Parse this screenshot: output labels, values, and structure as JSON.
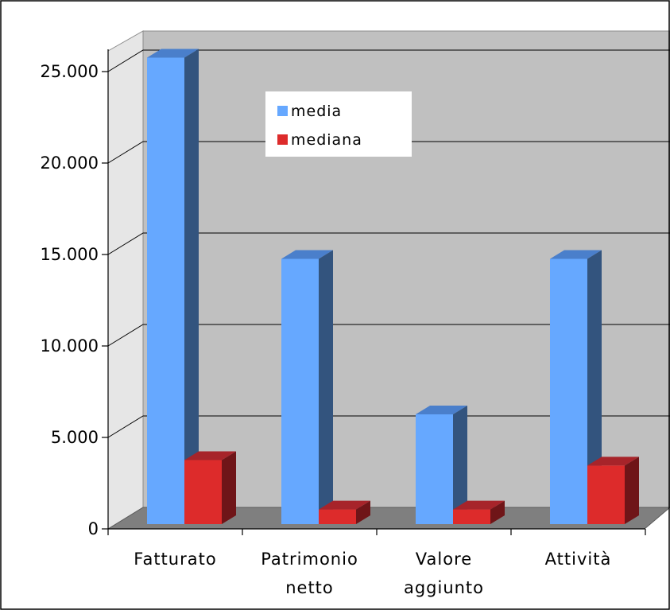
{
  "chart_data": {
    "type": "bar",
    "title": "",
    "xlabel": "",
    "ylabel": "",
    "categories": [
      [
        "Fatturato"
      ],
      [
        "Patrimonio",
        "netto"
      ],
      [
        "Valore",
        "aggiunto"
      ],
      [
        "Attività"
      ]
    ],
    "series": [
      {
        "name": "media",
        "values": [
          25500,
          14500,
          6000,
          14500
        ]
      },
      {
        "name": "mediana",
        "values": [
          3500,
          800,
          800,
          3200
        ]
      }
    ],
    "ylim": [
      0,
      25000
    ],
    "y_ticks": [
      0,
      5000,
      10000,
      15000,
      20000,
      25000
    ],
    "y_tick_labels": [
      "0",
      "5.000",
      "10.000",
      "15.000",
      "20.000",
      "25.000"
    ],
    "grid": true,
    "legend_position": "top-center",
    "style": "3d-clustered-column",
    "colors": {
      "media_front": "#66A8FF",
      "media_top": "#4A7FCB",
      "media_side": "#33547E",
      "mediana_front": "#DD2B2B",
      "mediana_top": "#A7242A",
      "mediana_side": "#6F1518",
      "back_wall": "#C0C0C0",
      "side_wall": "#E6E6E6",
      "floor": "#7F7F7F",
      "gridline": "#000000",
      "border": "#000000"
    }
  }
}
